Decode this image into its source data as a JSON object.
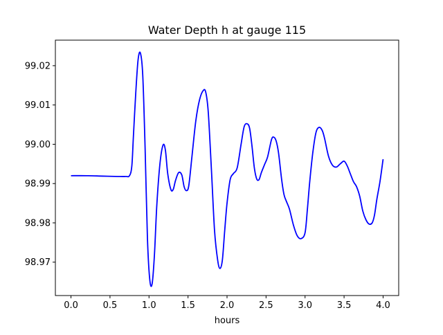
{
  "chart_data": {
    "type": "line",
    "title": "Water Depth h at gauge 115",
    "xlabel": "hours",
    "ylabel": "",
    "xlim": [
      -0.2,
      4.2
    ],
    "ylim": [
      98.9615,
      99.0265
    ],
    "grid": false,
    "legend": "none",
    "xticks": [
      {
        "value": 0.0,
        "label": "0.0"
      },
      {
        "value": 0.5,
        "label": "0.5"
      },
      {
        "value": 1.0,
        "label": "1.0"
      },
      {
        "value": 1.5,
        "label": "1.5"
      },
      {
        "value": 2.0,
        "label": "2.0"
      },
      {
        "value": 2.5,
        "label": "2.5"
      },
      {
        "value": 3.0,
        "label": "3.0"
      },
      {
        "value": 3.5,
        "label": "3.5"
      },
      {
        "value": 4.0,
        "label": "4.0"
      }
    ],
    "yticks": [
      {
        "value": 98.97,
        "label": "98.97"
      },
      {
        "value": 98.98,
        "label": "98.98"
      },
      {
        "value": 98.99,
        "label": "98.99"
      },
      {
        "value": 99.0,
        "label": "99.00"
      },
      {
        "value": 99.01,
        "label": "99.01"
      },
      {
        "value": 99.02,
        "label": "99.02"
      }
    ],
    "series": [
      {
        "color": "#0000ff",
        "x": [
          0.0,
          0.2,
          0.4,
          0.6,
          0.7,
          0.75,
          0.78,
          0.8,
          0.83,
          0.86,
          0.89,
          0.92,
          0.95,
          0.98,
          1.01,
          1.04,
          1.07,
          1.1,
          1.14,
          1.18,
          1.21,
          1.24,
          1.28,
          1.31,
          1.34,
          1.38,
          1.42,
          1.45,
          1.48,
          1.51,
          1.55,
          1.6,
          1.65,
          1.7,
          1.73,
          1.76,
          1.8,
          1.84,
          1.88,
          1.91,
          1.94,
          1.97,
          2.0,
          2.04,
          2.08,
          2.13,
          2.18,
          2.22,
          2.26,
          2.29,
          2.32,
          2.35,
          2.38,
          2.41,
          2.44,
          2.48,
          2.52,
          2.57,
          2.6,
          2.63,
          2.66,
          2.7,
          2.73,
          2.76,
          2.8,
          2.85,
          2.9,
          2.95,
          3.0,
          3.03,
          3.06,
          3.1,
          3.14,
          3.18,
          3.22,
          3.25,
          3.3,
          3.35,
          3.4,
          3.45,
          3.5,
          3.54,
          3.58,
          3.62,
          3.66,
          3.7,
          3.74,
          3.78,
          3.82,
          3.86,
          3.89,
          3.92,
          3.96,
          4.0
        ],
        "y": [
          98.992,
          98.992,
          98.9919,
          98.9918,
          98.9918,
          98.992,
          98.9945,
          99.002,
          99.013,
          99.0215,
          99.0232,
          99.0175,
          98.999,
          98.976,
          98.9655,
          98.9645,
          98.972,
          98.9845,
          98.995,
          98.9998,
          98.9985,
          98.9925,
          98.9885,
          98.9885,
          98.9908,
          98.9928,
          98.9922,
          98.9892,
          98.9882,
          98.9895,
          98.9968,
          99.006,
          99.0115,
          99.0138,
          99.013,
          99.008,
          98.9935,
          98.978,
          98.9705,
          98.9684,
          98.9705,
          98.978,
          98.985,
          98.991,
          98.9925,
          98.994,
          99.0,
          99.0045,
          99.0052,
          99.004,
          98.9995,
          98.994,
          98.9912,
          98.991,
          98.9928,
          98.9948,
          98.9968,
          99.0012,
          99.0018,
          99.0008,
          98.9978,
          98.991,
          98.9872,
          98.9855,
          98.9835,
          98.9795,
          98.9767,
          98.976,
          98.9775,
          98.9835,
          98.9905,
          98.998,
          99.003,
          99.0043,
          99.0035,
          99.0015,
          98.997,
          98.9947,
          98.9942,
          98.995,
          98.9957,
          98.9945,
          98.9925,
          98.9905,
          98.9892,
          98.9868,
          98.983,
          98.9808,
          98.9797,
          98.98,
          98.982,
          98.986,
          98.9905,
          98.9962
        ]
      }
    ]
  }
}
